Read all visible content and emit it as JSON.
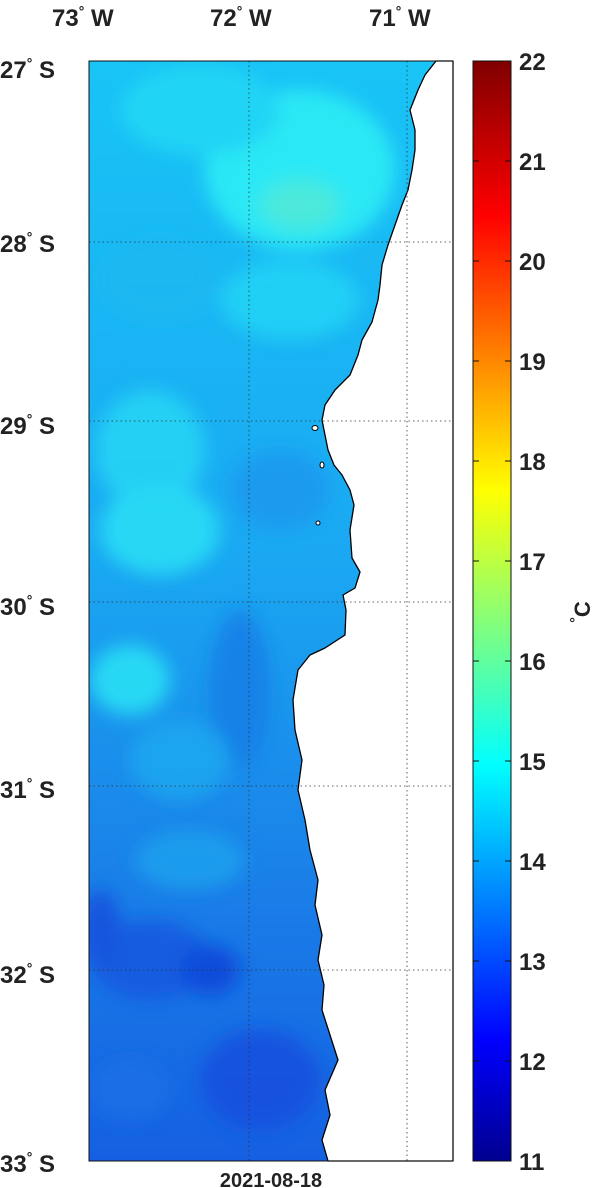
{
  "map": {
    "lon_labels": [
      {
        "deg": "73",
        "hemi": "W"
      },
      {
        "deg": "72",
        "hemi": "W"
      },
      {
        "deg": "71",
        "hemi": "W"
      }
    ],
    "lat_labels": [
      {
        "deg": "27",
        "hemi": "S"
      },
      {
        "deg": "28",
        "hemi": "S"
      },
      {
        "deg": "29",
        "hemi": "S"
      },
      {
        "deg": "30",
        "hemi": "S"
      },
      {
        "deg": "31",
        "hemi": "S"
      },
      {
        "deg": "32",
        "hemi": "S"
      },
      {
        "deg": "33",
        "hemi": "S"
      }
    ],
    "date": "2021-08-18",
    "colorbar": {
      "ticks": [
        "22",
        "21",
        "20",
        "19",
        "18",
        "17",
        "16",
        "15",
        "14",
        "13",
        "12",
        "11"
      ],
      "unit_symbol": "°",
      "unit_letter": "C",
      "min": 11,
      "max": 22,
      "colormap": "jet"
    },
    "land_color": "#ffffff",
    "coast_color": "#000000"
  }
}
